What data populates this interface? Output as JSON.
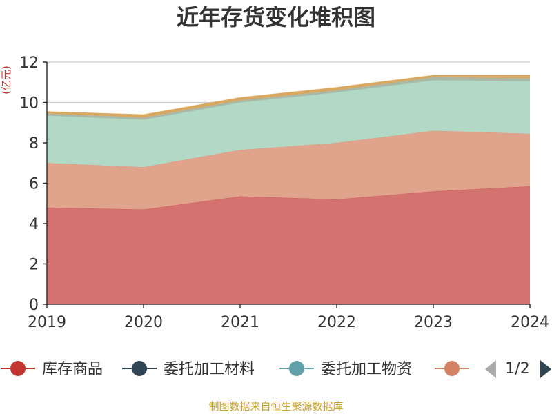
{
  "colors": {
    "title": "#333333",
    "ylabel": "#cc3333",
    "source": "#c9a227",
    "axis": "#333333",
    "grid": "#cccccc"
  },
  "legend_pager": {
    "text": "1/2",
    "prev_icon": "triangle-left-icon",
    "next_icon": "triangle-right-icon"
  },
  "footer": {
    "source": "制图数据来自恒生聚源数据库"
  },
  "chart_data": {
    "type": "area",
    "stacked": true,
    "title": "近年存货变化堆积图",
    "ylabel": "(亿元)",
    "xlabel": "",
    "x": [
      "2019",
      "2020",
      "2021",
      "2022",
      "2023",
      "2024"
    ],
    "ylim": [
      0,
      12
    ],
    "yticks": [
      0,
      2,
      4,
      6,
      8,
      10,
      12
    ],
    "grid": true,
    "legend_position": "bottom",
    "series": [
      {
        "name": "库存商品",
        "color": "#c23531",
        "fill": "#d47270",
        "values": [
          4.8,
          4.7,
          5.35,
          5.2,
          5.6,
          5.85
        ]
      },
      {
        "name": "委托加工材料",
        "color": "#2f4554",
        "fill": "#2f4554",
        "values": [
          0.0,
          0.0,
          0.0,
          0.0,
          0.0,
          0.0
        ]
      },
      {
        "name": "委托加工物资",
        "color": "#61a0a8",
        "fill": "#61a0a8",
        "values": [
          0.0,
          0.0,
          0.0,
          0.0,
          0.0,
          0.0
        ]
      },
      {
        "name": "",
        "color": "#d48265",
        "fill": "#e0a48d",
        "values": [
          2.2,
          2.1,
          2.3,
          2.8,
          3.0,
          2.6
        ]
      },
      {
        "name": "",
        "color": "#91c7ae",
        "fill": "#b1d9c6",
        "values": [
          2.35,
          2.35,
          2.35,
          2.5,
          2.5,
          2.6
        ]
      },
      {
        "name": "",
        "color": "#aaaaaa",
        "fill": "#a9b9a6",
        "values": [
          0.1,
          0.1,
          0.1,
          0.1,
          0.15,
          0.15
        ]
      },
      {
        "name": "",
        "color": "#d4a050",
        "fill": "#d8a860",
        "values": [
          0.1,
          0.15,
          0.15,
          0.15,
          0.1,
          0.15
        ]
      }
    ],
    "legend_visible": [
      "库存商品",
      "委托加工材料",
      "委托加工物资",
      ""
    ]
  }
}
